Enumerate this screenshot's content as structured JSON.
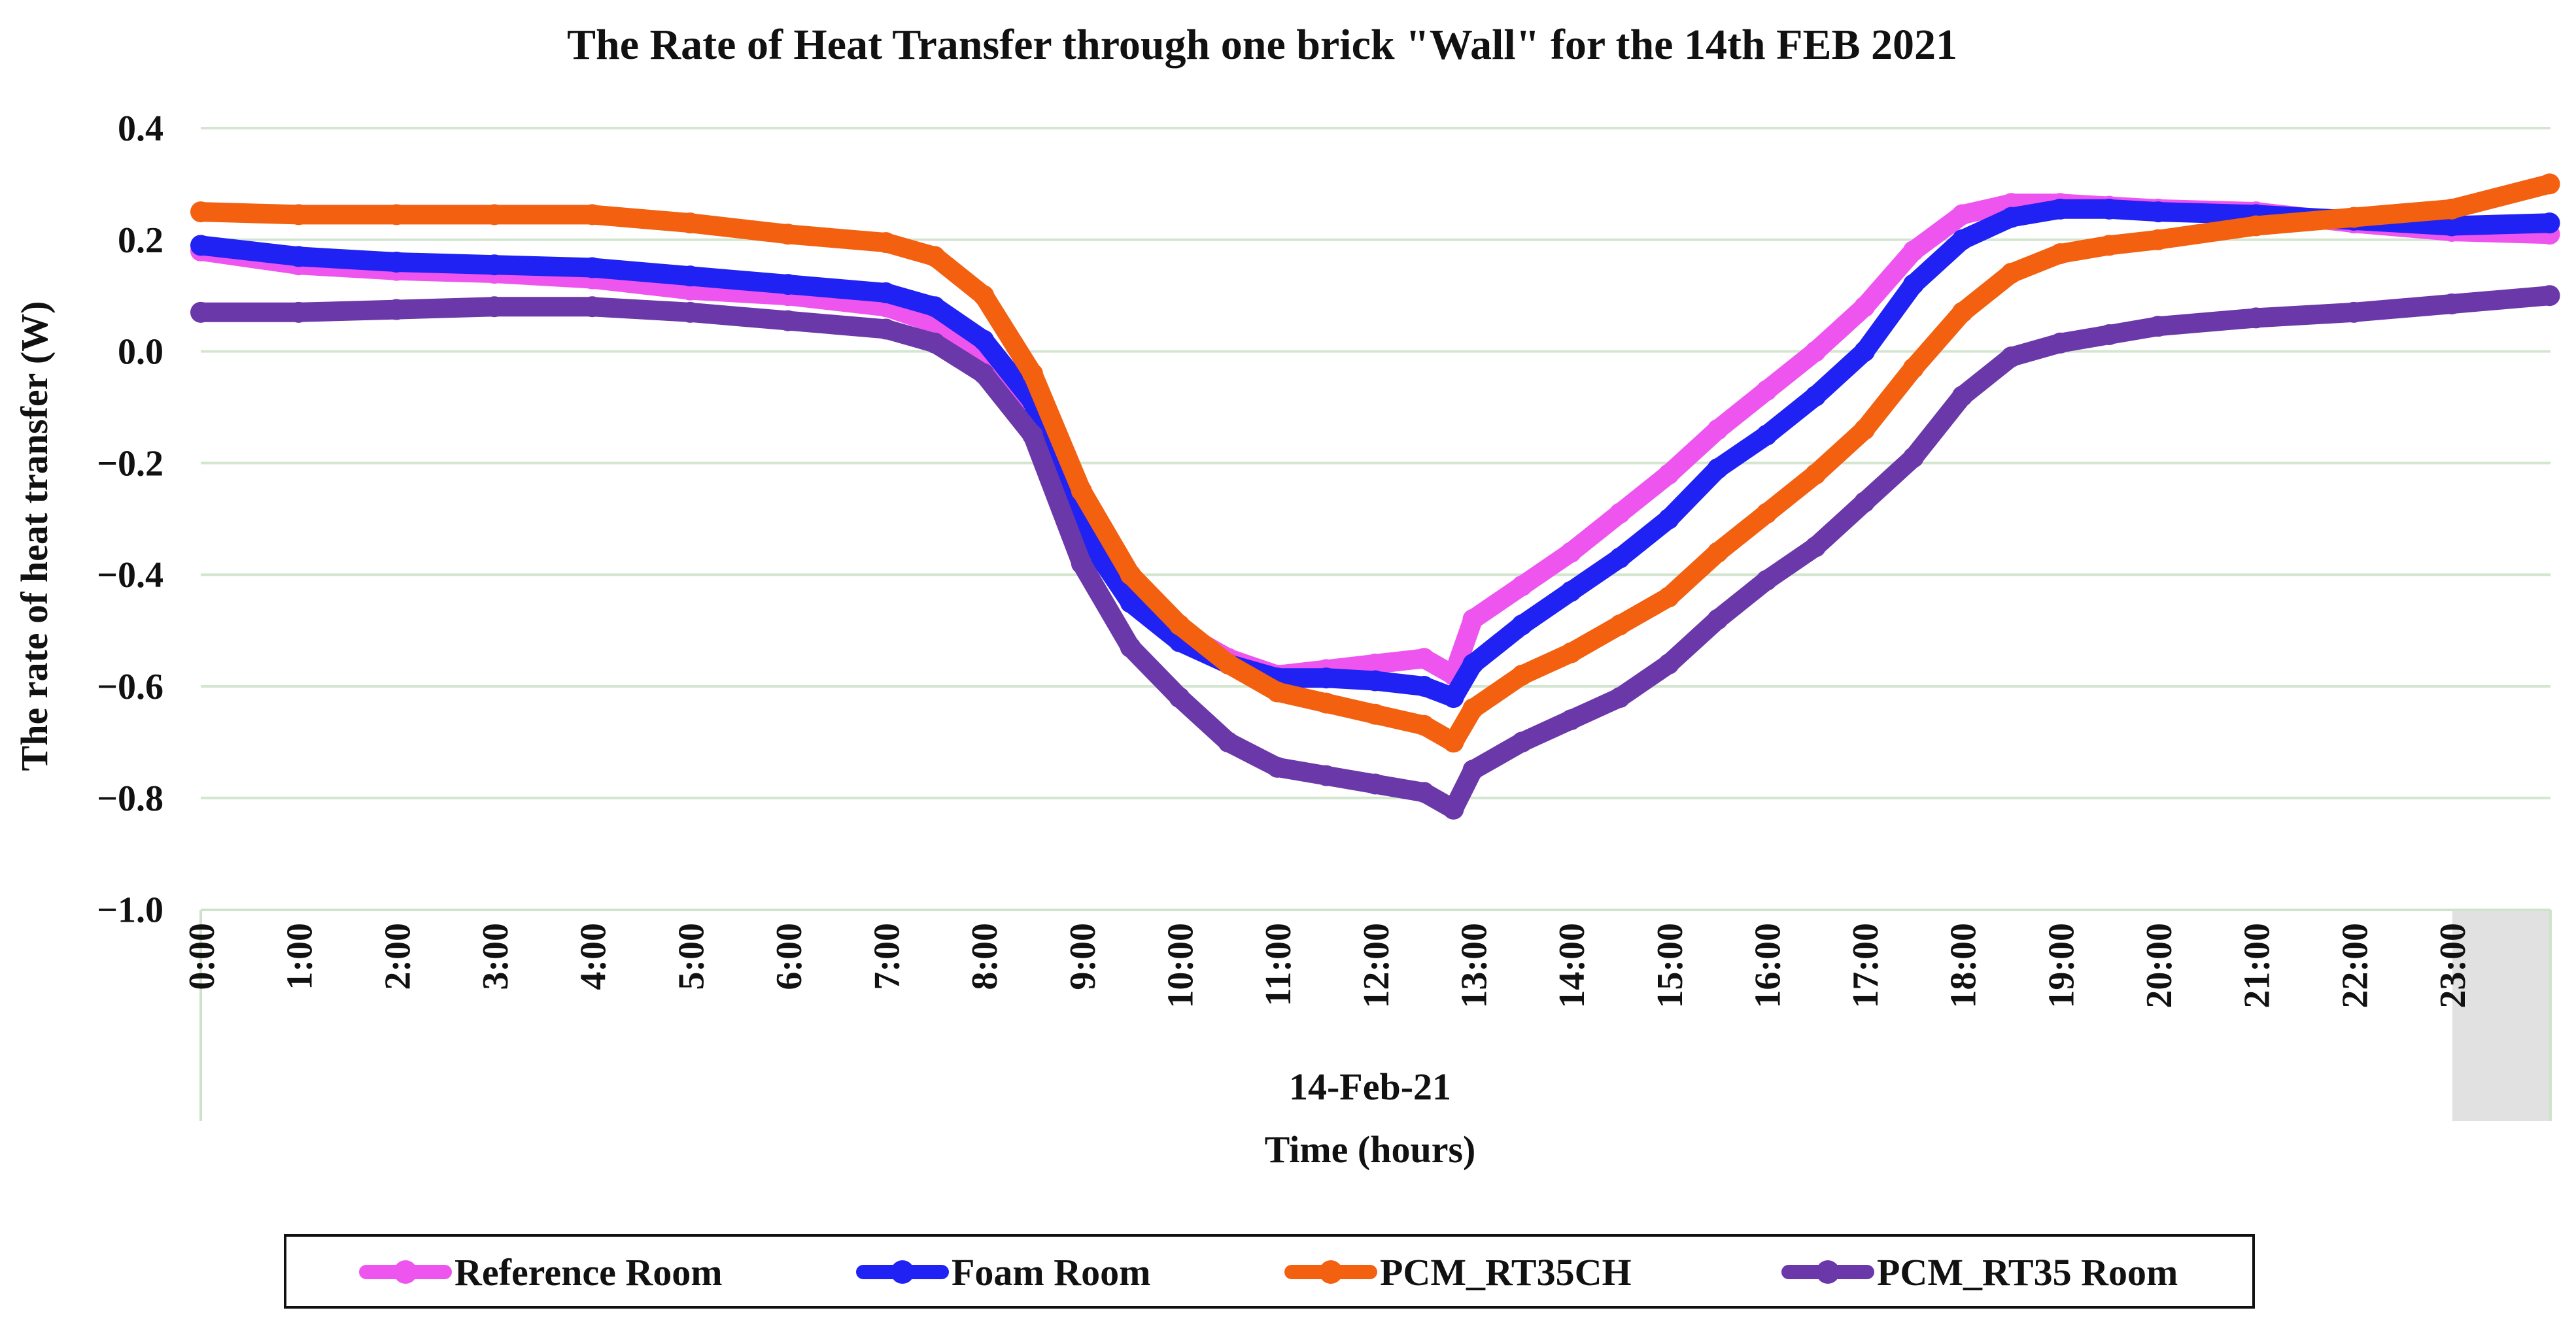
{
  "chart_data": {
    "type": "line",
    "title": "The Rate of Heat Transfer through one brick \"Wall\" for the 14th FEB 2021",
    "ylabel": "The rate of heat transfer (W)",
    "xlabel": "Time (hours)",
    "date_label": "14-Feb-21",
    "ylim": [
      -1.0,
      0.4
    ],
    "xlim": [
      0,
      24
    ],
    "grid": true,
    "legend_position": "bottom",
    "y_ticks": [
      {
        "value": 0.4,
        "label": "0.4"
      },
      {
        "value": 0.2,
        "label": "0.2"
      },
      {
        "value": 0.0,
        "label": "0.0"
      },
      {
        "value": -0.2,
        "label": "−0.2"
      },
      {
        "value": -0.4,
        "label": "−0.4"
      },
      {
        "value": -0.6,
        "label": "−0.6"
      },
      {
        "value": -0.8,
        "label": "−0.8"
      },
      {
        "value": -1.0,
        "label": "−1.0"
      }
    ],
    "x_ticks": [
      {
        "value": 0,
        "label": "0:00"
      },
      {
        "value": 1,
        "label": "1:00"
      },
      {
        "value": 2,
        "label": "2:00"
      },
      {
        "value": 3,
        "label": "3:00"
      },
      {
        "value": 4,
        "label": "4:00"
      },
      {
        "value": 5,
        "label": "5:00"
      },
      {
        "value": 6,
        "label": "6:00"
      },
      {
        "value": 7,
        "label": "7:00"
      },
      {
        "value": 8,
        "label": "8:00"
      },
      {
        "value": 9,
        "label": "9:00"
      },
      {
        "value": 10,
        "label": "10:00"
      },
      {
        "value": 11,
        "label": "11:00"
      },
      {
        "value": 12,
        "label": "12:00"
      },
      {
        "value": 13,
        "label": "13:00"
      },
      {
        "value": 14,
        "label": "14:00"
      },
      {
        "value": 15,
        "label": "15:00"
      },
      {
        "value": 16,
        "label": "16:00"
      },
      {
        "value": 17,
        "label": "17:00"
      },
      {
        "value": 18,
        "label": "18:00"
      },
      {
        "value": 19,
        "label": "19:00"
      },
      {
        "value": 20,
        "label": "20:00"
      },
      {
        "value": 21,
        "label": "21:00"
      },
      {
        "value": 22,
        "label": "22:00"
      },
      {
        "value": 23,
        "label": "23:00"
      }
    ],
    "series": [
      {
        "name": "Reference Room",
        "color": "#ee55ee",
        "x": [
          0,
          1,
          2,
          3,
          4,
          5,
          6,
          7,
          7.5,
          8,
          8.5,
          9,
          9.5,
          10,
          10.5,
          11,
          11.5,
          12,
          12.5,
          12.8,
          13,
          13.5,
          14,
          14.5,
          15,
          15.5,
          16,
          16.5,
          17,
          17.5,
          18,
          18.5,
          19,
          19.5,
          20,
          21,
          22,
          23,
          24
        ],
        "y": [
          0.18,
          0.155,
          0.145,
          0.14,
          0.13,
          0.11,
          0.1,
          0.08,
          0.05,
          0.0,
          -0.1,
          -0.3,
          -0.43,
          -0.5,
          -0.55,
          -0.58,
          -0.57,
          -0.56,
          -0.55,
          -0.58,
          -0.48,
          -0.42,
          -0.36,
          -0.29,
          -0.22,
          -0.14,
          -0.07,
          0.0,
          0.08,
          0.18,
          0.245,
          0.265,
          0.265,
          0.26,
          0.255,
          0.25,
          0.23,
          0.215,
          0.21
        ]
      },
      {
        "name": "Foam Room",
        "color": "#1f22f2",
        "x": [
          0,
          1,
          2,
          3,
          4,
          5,
          6,
          7,
          7.5,
          8,
          8.5,
          9,
          9.5,
          10,
          10.5,
          11,
          11.5,
          12,
          12.5,
          12.8,
          13,
          13.5,
          14,
          14.5,
          15,
          15.5,
          16,
          16.5,
          17,
          17.5,
          18,
          18.5,
          19,
          19.5,
          20,
          21,
          22,
          23,
          24
        ],
        "y": [
          0.19,
          0.17,
          0.16,
          0.155,
          0.15,
          0.135,
          0.12,
          0.105,
          0.08,
          0.02,
          -0.09,
          -0.32,
          -0.45,
          -0.52,
          -0.56,
          -0.585,
          -0.585,
          -0.59,
          -0.6,
          -0.62,
          -0.56,
          -0.49,
          -0.43,
          -0.37,
          -0.3,
          -0.21,
          -0.15,
          -0.08,
          0.0,
          0.12,
          0.2,
          0.24,
          0.255,
          0.255,
          0.25,
          0.245,
          0.235,
          0.225,
          0.23
        ]
      },
      {
        "name": "PCM_RT35CH",
        "color": "#f26010",
        "x": [
          0,
          1,
          2,
          3,
          4,
          5,
          6,
          7,
          7.5,
          8,
          8.5,
          9,
          9.5,
          10,
          10.5,
          11,
          11.5,
          12,
          12.5,
          12.8,
          13,
          13.5,
          14,
          14.5,
          15,
          15.5,
          16,
          16.5,
          17,
          17.5,
          18,
          18.5,
          19,
          19.5,
          20,
          21,
          22,
          23,
          24
        ],
        "y": [
          0.25,
          0.245,
          0.245,
          0.245,
          0.245,
          0.23,
          0.21,
          0.195,
          0.17,
          0.1,
          -0.04,
          -0.25,
          -0.4,
          -0.49,
          -0.56,
          -0.61,
          -0.63,
          -0.65,
          -0.67,
          -0.7,
          -0.64,
          -0.58,
          -0.54,
          -0.49,
          -0.44,
          -0.36,
          -0.29,
          -0.22,
          -0.14,
          -0.03,
          0.07,
          0.14,
          0.175,
          0.19,
          0.2,
          0.225,
          0.24,
          0.255,
          0.3
        ]
      },
      {
        "name": "PCM_RT35 Room",
        "color": "#6a38a8",
        "x": [
          0,
          1,
          2,
          3,
          4,
          5,
          6,
          7,
          7.5,
          8,
          8.5,
          9,
          9.5,
          10,
          10.5,
          11,
          11.5,
          12,
          12.5,
          12.8,
          13,
          13.5,
          14,
          14.5,
          15,
          15.5,
          16,
          16.5,
          17,
          17.5,
          18,
          18.5,
          19,
          19.5,
          20,
          21,
          22,
          23,
          24
        ],
        "y": [
          0.07,
          0.07,
          0.075,
          0.08,
          0.08,
          0.07,
          0.055,
          0.04,
          0.015,
          -0.04,
          -0.15,
          -0.38,
          -0.53,
          -0.62,
          -0.7,
          -0.745,
          -0.76,
          -0.775,
          -0.79,
          -0.82,
          -0.75,
          -0.7,
          -0.66,
          -0.62,
          -0.56,
          -0.48,
          -0.41,
          -0.35,
          -0.27,
          -0.19,
          -0.08,
          -0.01,
          0.015,
          0.03,
          0.045,
          0.06,
          0.07,
          0.085,
          0.1
        ]
      }
    ]
  }
}
